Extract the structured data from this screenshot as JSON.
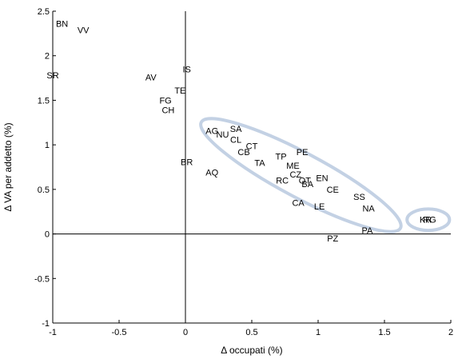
{
  "chart_data": {
    "type": "scatter",
    "title": "",
    "xlabel": "Δ occupati (%)",
    "ylabel": "Δ VA per addetto (%)",
    "xlim": [
      -1,
      2
    ],
    "ylim": [
      -1,
      2.5
    ],
    "grid": false,
    "x_ticks": [
      {
        "value": -1,
        "label": "-1"
      },
      {
        "value": -0.5,
        "label": "-0.5"
      },
      {
        "value": 0,
        "label": "0"
      },
      {
        "value": 0.5,
        "label": "0.5"
      },
      {
        "value": 1,
        "label": "1"
      },
      {
        "value": 1.5,
        "label": "1.5"
      },
      {
        "value": 2,
        "label": "2"
      }
    ],
    "y_ticks": [
      {
        "value": -1,
        "label": "-1"
      },
      {
        "value": -0.5,
        "label": "-0.5"
      },
      {
        "value": 0,
        "label": "0"
      },
      {
        "value": 0.5,
        "label": "0.5"
      },
      {
        "value": 1,
        "label": "1"
      },
      {
        "value": 1.5,
        "label": "1.5"
      },
      {
        "value": 2,
        "label": "2"
      },
      {
        "value": 2.5,
        "label": "2.5"
      }
    ],
    "reference_lines": {
      "x": 0,
      "y": 0
    },
    "points": [
      {
        "label": "BN",
        "x": -0.93,
        "y": 2.36
      },
      {
        "label": "VV",
        "x": -0.77,
        "y": 2.29
      },
      {
        "label": "SR",
        "x": -1.0,
        "y": 1.78
      },
      {
        "label": "AV",
        "x": -0.26,
        "y": 1.76
      },
      {
        "label": "IS",
        "x": 0.01,
        "y": 1.85
      },
      {
        "label": "TE",
        "x": -0.04,
        "y": 1.61
      },
      {
        "label": "FG",
        "x": -0.15,
        "y": 1.5
      },
      {
        "label": "CH",
        "x": -0.13,
        "y": 1.39
      },
      {
        "label": "AG",
        "x": 0.2,
        "y": 1.16
      },
      {
        "label": "NU",
        "x": 0.28,
        "y": 1.12
      },
      {
        "label": "SA",
        "x": 0.38,
        "y": 1.18
      },
      {
        "label": "CL",
        "x": 0.38,
        "y": 1.06
      },
      {
        "label": "CT",
        "x": 0.5,
        "y": 0.99
      },
      {
        "label": "CB",
        "x": 0.44,
        "y": 0.92
      },
      {
        "label": "TP",
        "x": 0.72,
        "y": 0.87
      },
      {
        "label": "PE",
        "x": 0.88,
        "y": 0.92
      },
      {
        "label": "BR",
        "x": 0.01,
        "y": 0.81
      },
      {
        "label": "TA",
        "x": 0.56,
        "y": 0.8
      },
      {
        "label": "ME",
        "x": 0.81,
        "y": 0.77
      },
      {
        "label": "AQ",
        "x": 0.2,
        "y": 0.69
      },
      {
        "label": "CZ",
        "x": 0.83,
        "y": 0.67
      },
      {
        "label": "EN",
        "x": 1.03,
        "y": 0.63
      },
      {
        "label": "RC",
        "x": 0.73,
        "y": 0.6
      },
      {
        "label": "OT",
        "x": 0.9,
        "y": 0.6
      },
      {
        "label": "BA",
        "x": 0.92,
        "y": 0.56
      },
      {
        "label": "CE",
        "x": 1.11,
        "y": 0.5
      },
      {
        "label": "SS",
        "x": 1.31,
        "y": 0.42
      },
      {
        "label": "CA",
        "x": 0.85,
        "y": 0.35
      },
      {
        "label": "LE",
        "x": 1.01,
        "y": 0.31
      },
      {
        "label": "NA",
        "x": 1.38,
        "y": 0.29
      },
      {
        "label": "KR",
        "x": 1.81,
        "y": 0.16
      },
      {
        "label": "RG",
        "x": 1.84,
        "y": 0.16
      },
      {
        "label": "PA",
        "x": 1.37,
        "y": 0.04
      },
      {
        "label": "PZ",
        "x": 1.11,
        "y": -0.05
      }
    ],
    "annotations": [
      {
        "type": "ellipse",
        "cx": 0.87,
        "cy": 0.66,
        "rx": 0.85,
        "ry": 0.25,
        "angle_deg": 28,
        "stroke": "#c3d1e4"
      },
      {
        "type": "ellipse",
        "cx": 1.83,
        "cy": 0.16,
        "rx": 0.16,
        "ry": 0.12,
        "angle_deg": 0,
        "stroke": "#c3d1e4"
      }
    ],
    "colors": {
      "axes": "#000000",
      "text": "#000000",
      "highlight": "#c3d1e4",
      "background": "#ffffff"
    }
  }
}
